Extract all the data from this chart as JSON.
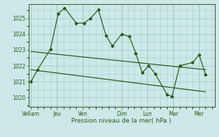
{
  "xlabel": "Pression niveau de la mer( hPa )",
  "bg_color": "#cce8e8",
  "grid_color": "#aacccc",
  "line_color": "#2d5a1b",
  "xtick_labels": [
    "Ve6am",
    "Jeu",
    "Ven",
    "Dim",
    "Lun",
    "Mar",
    "Mer"
  ],
  "xtick_positions": [
    0,
    2,
    4,
    7,
    9,
    11,
    13
  ],
  "ylim": [
    1019.4,
    1025.9
  ],
  "yticks": [
    1020,
    1021,
    1022,
    1023,
    1024,
    1025
  ],
  "xlim": [
    -0.2,
    14.2
  ],
  "series1_x": [
    0,
    0.5,
    1.5,
    2.1,
    2.6,
    3.5,
    4.1,
    4.6,
    5.2,
    5.8,
    6.3,
    7.0,
    7.6,
    8.1,
    8.6,
    9.1,
    9.6,
    10.5,
    10.9,
    11.5,
    12.5,
    13.0,
    13.5
  ],
  "series1_y": [
    1021.0,
    1021.75,
    1023.05,
    1025.3,
    1025.65,
    1024.7,
    1024.7,
    1025.0,
    1025.55,
    1023.9,
    1023.25,
    1024.0,
    1023.85,
    1022.8,
    1021.55,
    1022.0,
    1021.5,
    1020.2,
    1020.05,
    1022.0,
    1022.2,
    1022.7,
    1021.45
  ],
  "trend1_x": [
    0,
    13.5
  ],
  "trend1_y": [
    1022.9,
    1021.75
  ],
  "trend2_x": [
    0,
    13.5
  ],
  "trend2_y": [
    1021.75,
    1020.35
  ]
}
